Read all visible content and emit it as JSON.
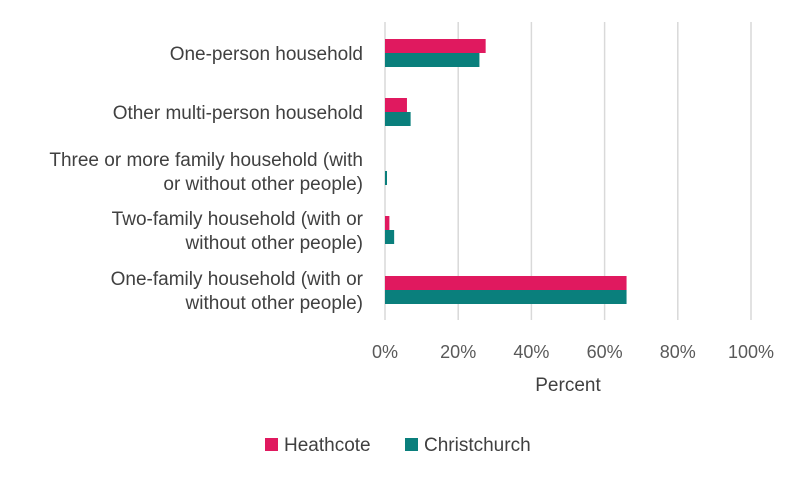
{
  "chart_data": {
    "type": "bar",
    "orientation": "horizontal",
    "categories": [
      [
        "One-person household"
      ],
      [
        "Other multi-person household"
      ],
      [
        "Three or more family household (with",
        "or without other people)"
      ],
      [
        "Two-family household (with or",
        "without other people)"
      ],
      [
        "One-family household (with or",
        "without other people)"
      ]
    ],
    "series": [
      {
        "name": "Heathcote",
        "color": "#e0195f",
        "values": [
          27.5,
          6.0,
          0.0,
          1.2,
          66.0
        ]
      },
      {
        "name": "Christchurch",
        "color": "#0a7f7c",
        "values": [
          25.8,
          7.0,
          0.5,
          2.5,
          66.0
        ]
      }
    ],
    "xlabel": "Percent",
    "xlim": [
      0,
      100
    ],
    "xticks": [
      {
        "value": 0,
        "label": "0%"
      },
      {
        "value": 20,
        "label": "20%"
      },
      {
        "value": 40,
        "label": "40%"
      },
      {
        "value": 60,
        "label": "60%"
      },
      {
        "value": 80,
        "label": "80%"
      },
      {
        "value": 100,
        "label": "100%"
      }
    ],
    "grid": true,
    "legend_position": "bottom"
  }
}
